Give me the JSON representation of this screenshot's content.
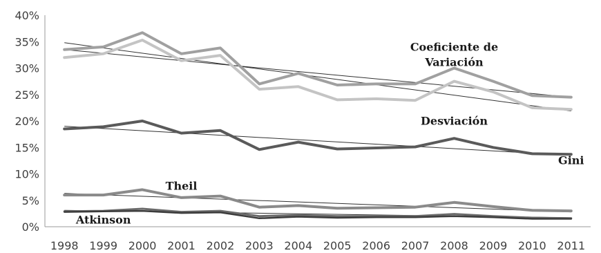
{
  "chart_data": {
    "type": "line",
    "title": "",
    "xlabel": "",
    "ylabel": "",
    "x": [
      "1998",
      "1999",
      "2000",
      "2001",
      "2002",
      "2003",
      "2004",
      "2005",
      "2006",
      "2007",
      "2008",
      "2009",
      "2010",
      "2011"
    ],
    "ylim": [
      0,
      40
    ],
    "y_ticks": [
      "0%",
      "5%",
      "10%",
      "15%",
      "20%",
      "25%",
      "30%",
      "35%",
      "40%"
    ],
    "grid": false,
    "legend": "none",
    "series": [
      {
        "values": [
          33.5,
          34.0,
          36.7,
          32.7,
          33.8,
          27.0,
          29.0,
          26.8,
          27.0,
          27.0,
          30.0,
          27.5,
          24.8,
          24.5
        ],
        "color": "#a0a0a0",
        "width": 4
      },
      {
        "values": [
          32.0,
          32.7,
          35.3,
          31.4,
          32.4,
          26.0,
          26.5,
          24.0,
          24.2,
          23.9,
          27.5,
          25.5,
          22.5,
          22.2
        ],
        "color": "#c4c4c4",
        "width": 4
      },
      {
        "values": [
          18.5,
          18.9,
          20.0,
          17.7,
          18.2,
          14.6,
          16.0,
          14.7,
          14.9,
          15.1,
          16.7,
          15.0,
          13.8,
          13.7
        ],
        "color": "#5a5a5a",
        "width": 4
      },
      {
        "values": [
          6.0,
          6.0,
          7.0,
          5.5,
          5.8,
          3.7,
          4.0,
          3.5,
          3.6,
          3.7,
          4.6,
          3.8,
          3.1,
          3.0
        ],
        "color": "#8a8a8a",
        "width": 4
      },
      {
        "values": [
          2.9,
          3.0,
          3.4,
          2.8,
          3.0,
          2.0,
          2.2,
          2.0,
          2.0,
          2.0,
          2.4,
          2.0,
          1.7,
          1.6
        ],
        "color": "#6a6a6a",
        "width": 3
      },
      {
        "values": [
          2.8,
          2.9,
          3.0,
          2.6,
          2.7,
          1.6,
          1.9,
          1.7,
          1.8,
          1.8,
          2.0,
          1.8,
          1.5,
          1.5
        ],
        "color": "#3c3c3c",
        "width": 2.5
      }
    ],
    "trendlines": [
      {
        "from": 34.8,
        "to": 21.9
      },
      {
        "from": 33.5,
        "to": 24.5
      },
      {
        "from": 19.0,
        "to": 13.5
      },
      {
        "from": 6.3,
        "to": 2.8
      },
      {
        "from": 3.1,
        "to": 1.7
      }
    ],
    "annotations": [
      {
        "text": "Coeficiente de",
        "x": "2008",
        "y": 33.3
      },
      {
        "text": "Variación",
        "x": "2008",
        "y": 30.4
      },
      {
        "text": "Desviación",
        "x": "2008",
        "y": 19.3
      },
      {
        "text": "Gini",
        "x": "2011",
        "y": 11.8
      },
      {
        "text": "Theil",
        "x": "2001",
        "y": 7.0
      },
      {
        "text": "Atkinson",
        "x": "1999",
        "y": 0.6
      }
    ]
  }
}
